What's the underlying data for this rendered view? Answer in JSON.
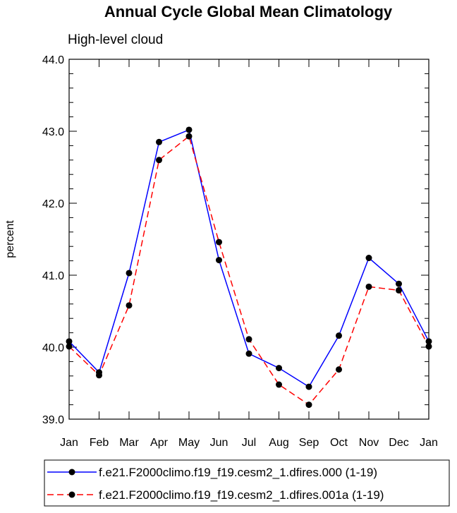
{
  "chart_data": {
    "type": "line",
    "title": "Annual Cycle Global Mean Climatology",
    "subtitle": "High-level cloud",
    "xlabel": "",
    "ylabel": "percent",
    "categories": [
      "Jan",
      "Feb",
      "Mar",
      "Apr",
      "May",
      "Jun",
      "Jul",
      "Aug",
      "Sep",
      "Oct",
      "Nov",
      "Dec",
      "Jan"
    ],
    "yticks": [
      "39.0",
      "40.0",
      "41.0",
      "42.0",
      "43.0",
      "44.0"
    ],
    "ylim": [
      39.0,
      44.0
    ],
    "grid": false,
    "legend_position": "bottom",
    "series": [
      {
        "name": "f.e21.F2000climo.f19_f19.cesm2_1.dfires.000 (1-19)",
        "color": "#0000ff",
        "dash": "solid",
        "values": [
          40.08,
          39.65,
          41.03,
          42.85,
          43.02,
          41.21,
          39.91,
          39.71,
          39.45,
          40.16,
          41.24,
          40.88,
          40.08
        ]
      },
      {
        "name": "f.e21.F2000climo.f19_f19.cesm2_1.dfires.001a (1-19)",
        "color": "#ff0000",
        "dash": "dashed",
        "values": [
          40.01,
          39.61,
          40.58,
          42.6,
          42.93,
          41.46,
          40.11,
          39.48,
          39.2,
          39.69,
          40.84,
          40.79,
          40.01
        ]
      }
    ]
  }
}
